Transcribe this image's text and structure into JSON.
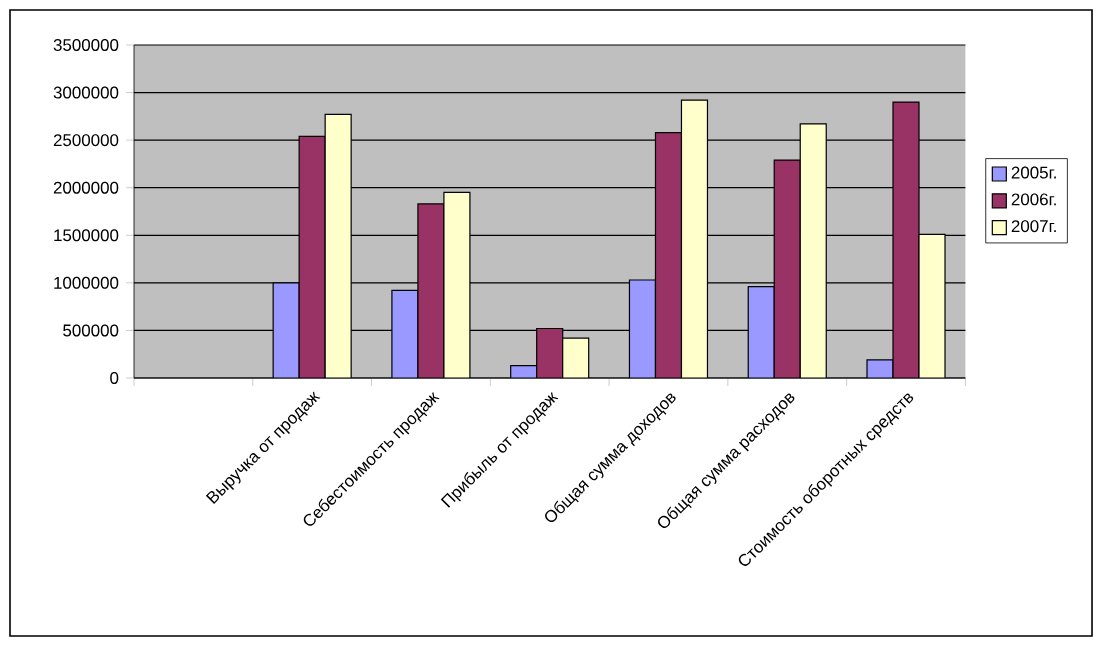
{
  "chart_data": {
    "type": "bar",
    "categories": [
      null,
      "Выручка от продаж",
      "Себестоимость продаж",
      "Прибыль от продаж",
      "Общая сумма доходов",
      "Общая сумма расходов",
      "Стоимость оборотных средств"
    ],
    "series": [
      {
        "name": "2005г.",
        "color": "#9999ff",
        "values": [
          null,
          1000000,
          920000,
          130000,
          1030000,
          960000,
          190000
        ]
      },
      {
        "name": "2006г.",
        "color": "#993366",
        "values": [
          null,
          2540000,
          1830000,
          520000,
          2580000,
          2290000,
          2900000
        ]
      },
      {
        "name": "2007г.",
        "color": "#ffffcc",
        "values": [
          null,
          2770000,
          1950000,
          420000,
          2920000,
          2670000,
          1510000
        ]
      }
    ],
    "ylim": [
      0,
      3500000
    ],
    "yticks": [
      0,
      500000,
      1000000,
      1500000,
      2000000,
      2500000,
      3000000,
      3500000
    ],
    "grid": "y",
    "legend": "right"
  }
}
